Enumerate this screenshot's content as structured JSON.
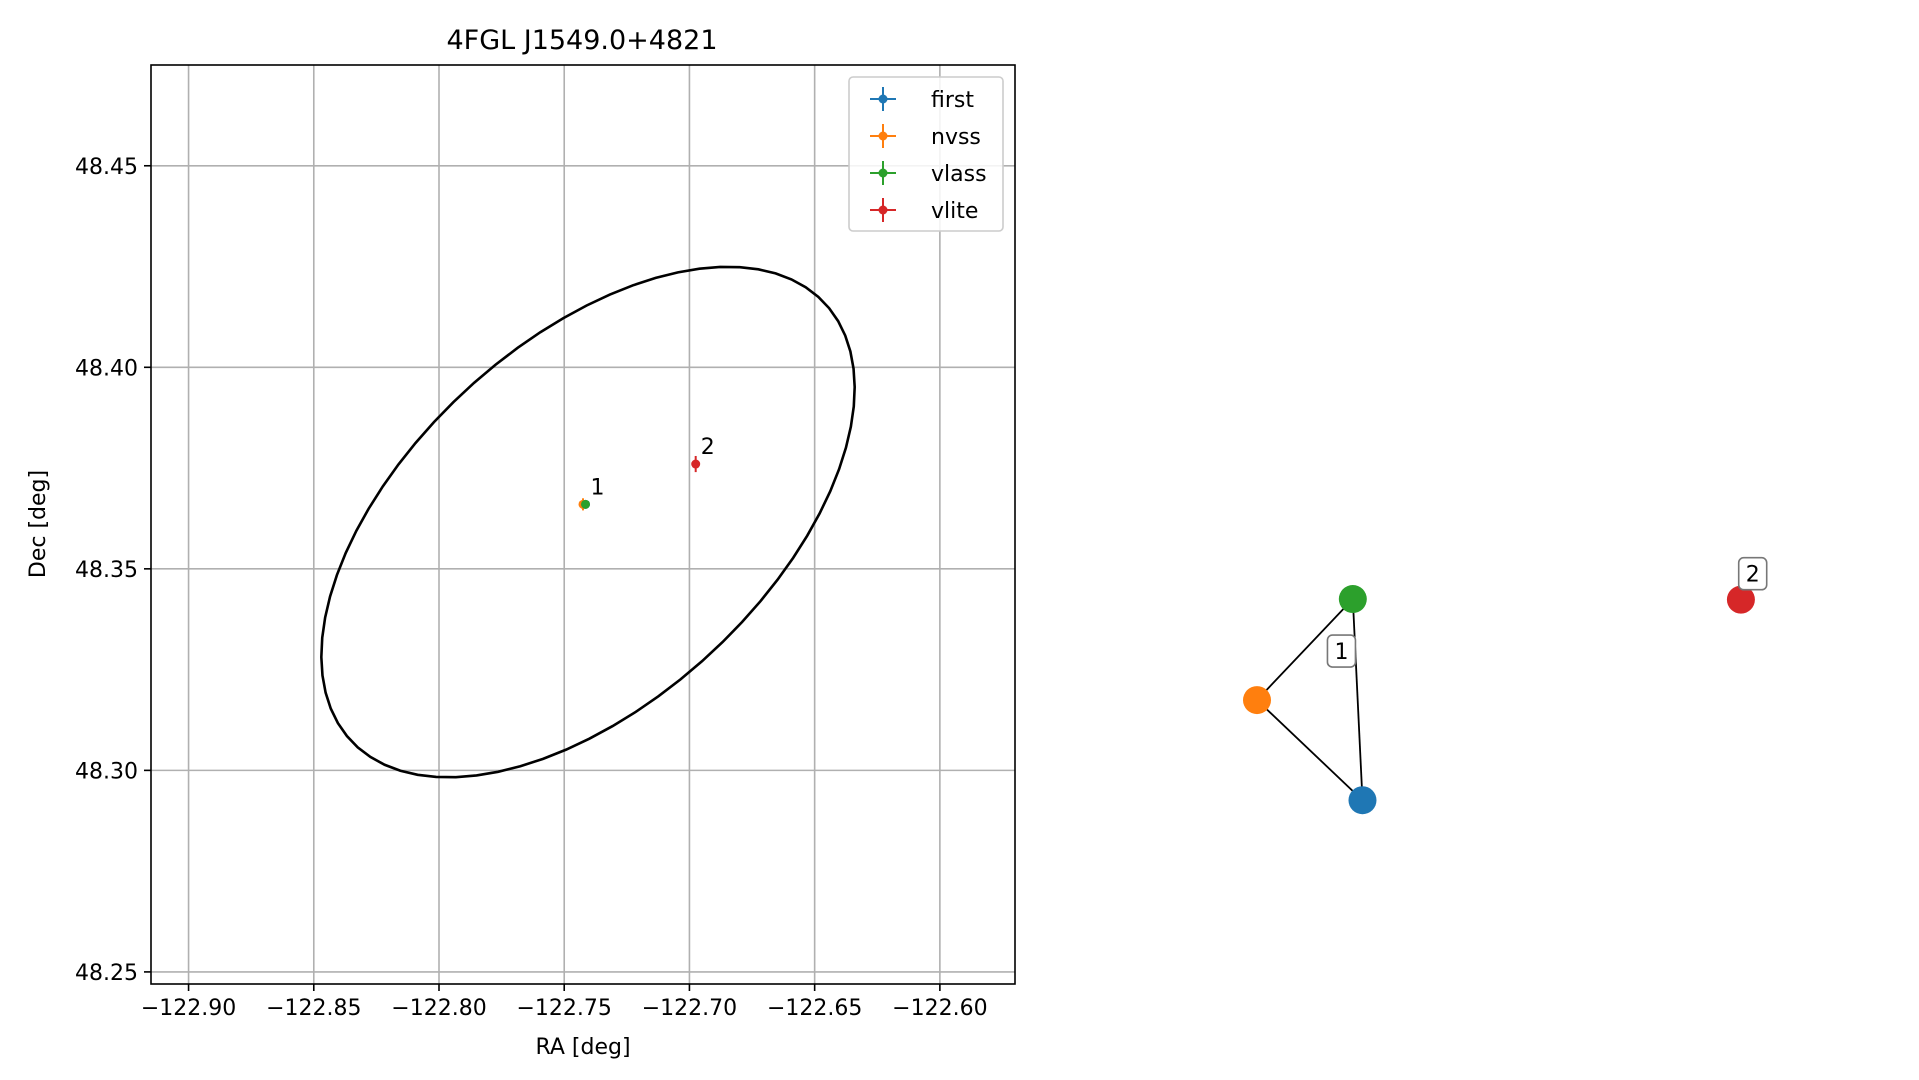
{
  "chart_data": [
    {
      "type": "scatter",
      "title": "4FGL J1549.0+4821",
      "xlabel": "RA [deg]",
      "ylabel": "Dec [deg]",
      "xlim": [
        -122.915,
        -122.57
      ],
      "ylim": [
        48.247,
        48.475
      ],
      "xticks": [
        -122.9,
        -122.85,
        -122.8,
        -122.75,
        -122.7,
        -122.65,
        -122.6
      ],
      "xtick_labels": [
        "−122.90",
        "−122.85",
        "−122.80",
        "−122.75",
        "−122.70",
        "−122.65",
        "−122.60"
      ],
      "yticks": [
        48.25,
        48.3,
        48.35,
        48.4,
        48.45
      ],
      "ytick_labels": [
        "48.25",
        "48.30",
        "48.35",
        "48.40",
        "48.45"
      ],
      "grid": true,
      "legend_position": "top-right",
      "ellipse": {
        "center": [
          -122.7405,
          48.3616
        ],
        "semi_major_deg": 0.113,
        "semi_minor_deg": 0.0508,
        "angle_deg": 22,
        "color": "#000000"
      },
      "series": [
        {
          "name": "first",
          "color": "#1f77b4",
          "points": [
            {
              "x": -122.7415,
              "y": 48.366,
              "xerr": 0.0005,
              "yerr": 0.0005
            }
          ]
        },
        {
          "name": "nvss",
          "color": "#ff7f0e",
          "points": [
            {
              "x": -122.7425,
              "y": 48.366,
              "xerr": 0.001,
              "yerr": 0.0015
            }
          ]
        },
        {
          "name": "vlass",
          "color": "#2ca02c",
          "points": [
            {
              "x": -122.7415,
              "y": 48.366,
              "xerr": 0.0005,
              "yerr": 0.0005
            }
          ]
        },
        {
          "name": "vlite",
          "color": "#d62728",
          "points": [
            {
              "x": -122.6975,
              "y": 48.376,
              "xerr": 0.0015,
              "yerr": 0.002
            }
          ]
        }
      ],
      "annotations": [
        {
          "text": "1",
          "x": -122.7395,
          "y": 48.367
        },
        {
          "text": "2",
          "x": -122.6955,
          "y": 48.377
        }
      ]
    },
    {
      "type": "network",
      "nodes": [
        {
          "id": "first",
          "color": "#1f77b4",
          "x": 0.1735,
          "y": 0.3275
        },
        {
          "id": "nvss",
          "color": "#ff7f0e",
          "x": 0.0,
          "y": 0.4917
        },
        {
          "id": "vlass",
          "color": "#2ca02c",
          "x": 0.1576,
          "y": 0.6573
        },
        {
          "id": "vlite",
          "color": "#d62728",
          "x": 0.7959,
          "y": 0.6563
        }
      ],
      "edges": [
        [
          "first",
          "nvss"
        ],
        [
          "nvss",
          "vlass"
        ],
        [
          "vlass",
          "first"
        ]
      ],
      "group_labels": [
        {
          "text": "1",
          "x": 0.1389,
          "y": 0.572
        },
        {
          "text": "2",
          "x": 0.8153,
          "y": 0.6988
        }
      ]
    }
  ]
}
